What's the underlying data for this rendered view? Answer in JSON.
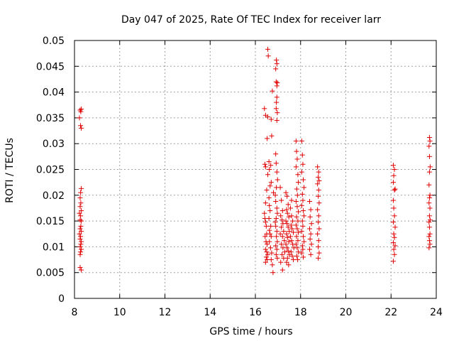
{
  "chart_data": {
    "type": "scatter",
    "title": "Day 047 of 2025, Rate Of TEC Index for receiver larr",
    "xlabel": "GPS time / hours",
    "ylabel": "ROTI / TECUs",
    "xlim": [
      8,
      24
    ],
    "ylim": [
      0,
      0.05
    ],
    "xticks": [
      "8",
      "10",
      "12",
      "14",
      "16",
      "18",
      "20",
      "22",
      "24"
    ],
    "yticks": [
      "0",
      "0.005",
      "0.01",
      "0.015",
      "0.02",
      "0.025",
      "0.03",
      "0.035",
      "0.04",
      "0.045",
      "0.05"
    ],
    "grid": true,
    "marker": "plus",
    "color": "#e00000",
    "series": [
      {
        "points": [
          [
            8.25,
            0.0365
          ],
          [
            8.28,
            0.0362
          ],
          [
            8.3,
            0.0367
          ],
          [
            8.22,
            0.035
          ],
          [
            8.27,
            0.0335
          ],
          [
            8.3,
            0.033
          ],
          [
            8.3,
            0.0213
          ],
          [
            8.27,
            0.0205
          ],
          [
            8.25,
            0.0195
          ],
          [
            8.28,
            0.0185
          ],
          [
            8.25,
            0.0178
          ],
          [
            8.3,
            0.017
          ],
          [
            8.22,
            0.0165
          ],
          [
            8.27,
            0.016
          ],
          [
            8.25,
            0.0152
          ],
          [
            8.3,
            0.015
          ],
          [
            8.28,
            0.014
          ],
          [
            8.25,
            0.0135
          ],
          [
            8.3,
            0.013
          ],
          [
            8.22,
            0.0125
          ],
          [
            8.27,
            0.012
          ],
          [
            8.25,
            0.0115
          ],
          [
            8.3,
            0.011
          ],
          [
            8.28,
            0.0105
          ],
          [
            8.25,
            0.01
          ],
          [
            8.3,
            0.0095
          ],
          [
            8.27,
            0.009
          ],
          [
            8.25,
            0.0085
          ],
          [
            8.25,
            0.006
          ],
          [
            8.3,
            0.0055
          ],
          [
            16.55,
            0.0483
          ],
          [
            16.57,
            0.047
          ],
          [
            16.93,
            0.0462
          ],
          [
            16.95,
            0.0455
          ],
          [
            16.9,
            0.0445
          ],
          [
            16.92,
            0.042
          ],
          [
            16.97,
            0.0418
          ],
          [
            16.95,
            0.0412
          ],
          [
            16.75,
            0.0402
          ],
          [
            16.95,
            0.039
          ],
          [
            16.93,
            0.038
          ],
          [
            16.4,
            0.0368
          ],
          [
            16.92,
            0.0368
          ],
          [
            16.97,
            0.036
          ],
          [
            16.45,
            0.0355
          ],
          [
            16.55,
            0.0352
          ],
          [
            16.95,
            0.0345
          ],
          [
            16.7,
            0.0347
          ],
          [
            16.72,
            0.0315
          ],
          [
            16.52,
            0.031
          ],
          [
            16.42,
            0.026
          ],
          [
            16.45,
            0.0255
          ],
          [
            16.55,
            0.024
          ],
          [
            16.6,
            0.0265
          ],
          [
            16.62,
            0.025
          ],
          [
            16.68,
            0.0258
          ],
          [
            16.7,
            0.0225
          ],
          [
            16.65,
            0.0218
          ],
          [
            16.5,
            0.021
          ],
          [
            16.45,
            0.0185
          ],
          [
            16.4,
            0.0165
          ],
          [
            16.42,
            0.0155
          ],
          [
            16.45,
            0.0148
          ],
          [
            16.48,
            0.014
          ],
          [
            16.5,
            0.0125
          ],
          [
            16.43,
            0.012
          ],
          [
            16.47,
            0.011
          ],
          [
            16.52,
            0.0105
          ],
          [
            16.45,
            0.0095
          ],
          [
            16.5,
            0.009
          ],
          [
            16.55,
            0.0085
          ],
          [
            16.48,
            0.008
          ],
          [
            16.52,
            0.0075
          ],
          [
            16.45,
            0.007
          ],
          [
            16.6,
            0.0195
          ],
          [
            16.62,
            0.018
          ],
          [
            16.65,
            0.017
          ],
          [
            16.6,
            0.0155
          ],
          [
            16.68,
            0.014
          ],
          [
            16.62,
            0.0132
          ],
          [
            16.65,
            0.0125
          ],
          [
            16.7,
            0.012
          ],
          [
            16.62,
            0.011
          ],
          [
            16.67,
            0.0098
          ],
          [
            16.72,
            0.0088
          ],
          [
            16.7,
            0.0075
          ],
          [
            16.75,
            0.0065
          ],
          [
            16.78,
            0.005
          ],
          [
            16.8,
            0.0205
          ],
          [
            16.9,
            0.028
          ],
          [
            16.92,
            0.0262
          ],
          [
            16.95,
            0.0245
          ],
          [
            16.98,
            0.023
          ],
          [
            16.93,
            0.0215
          ],
          [
            16.88,
            0.02
          ],
          [
            16.9,
            0.0188
          ],
          [
            16.95,
            0.0175
          ],
          [
            16.97,
            0.0165
          ],
          [
            16.92,
            0.0155
          ],
          [
            16.88,
            0.0148
          ],
          [
            16.9,
            0.014
          ],
          [
            16.95,
            0.013
          ],
          [
            16.93,
            0.012
          ],
          [
            16.97,
            0.011
          ],
          [
            16.9,
            0.0102
          ],
          [
            16.95,
            0.0095
          ],
          [
            16.92,
            0.0085
          ],
          [
            16.97,
            0.0078
          ],
          [
            17.1,
            0.0215
          ],
          [
            17.15,
            0.019
          ],
          [
            17.2,
            0.017
          ],
          [
            17.12,
            0.016
          ],
          [
            17.18,
            0.0152
          ],
          [
            17.22,
            0.0145
          ],
          [
            17.15,
            0.0138
          ],
          [
            17.25,
            0.013
          ],
          [
            17.1,
            0.0125
          ],
          [
            17.2,
            0.012
          ],
          [
            17.28,
            0.0112
          ],
          [
            17.15,
            0.0105
          ],
          [
            17.22,
            0.0098
          ],
          [
            17.3,
            0.009
          ],
          [
            17.18,
            0.0085
          ],
          [
            17.25,
            0.0078
          ],
          [
            17.12,
            0.007
          ],
          [
            17.2,
            0.0055
          ],
          [
            17.35,
            0.0205
          ],
          [
            17.4,
            0.0198
          ],
          [
            17.45,
            0.0182
          ],
          [
            17.38,
            0.0172
          ],
          [
            17.42,
            0.0165
          ],
          [
            17.48,
            0.0158
          ],
          [
            17.35,
            0.015
          ],
          [
            17.4,
            0.0145
          ],
          [
            17.45,
            0.0138
          ],
          [
            17.5,
            0.013
          ],
          [
            17.38,
            0.0125
          ],
          [
            17.42,
            0.0118
          ],
          [
            17.48,
            0.011
          ],
          [
            17.35,
            0.0105
          ],
          [
            17.4,
            0.0098
          ],
          [
            17.45,
            0.0092
          ],
          [
            17.5,
            0.0085
          ],
          [
            17.42,
            0.0078
          ],
          [
            17.38,
            0.007
          ],
          [
            17.47,
            0.0065
          ],
          [
            17.55,
            0.0175
          ],
          [
            17.6,
            0.016
          ],
          [
            17.65,
            0.015
          ],
          [
            17.58,
            0.0142
          ],
          [
            17.62,
            0.0135
          ],
          [
            17.68,
            0.0128
          ],
          [
            17.55,
            0.012
          ],
          [
            17.6,
            0.0112
          ],
          [
            17.65,
            0.0105
          ],
          [
            17.7,
            0.0098
          ],
          [
            17.58,
            0.009
          ],
          [
            17.63,
            0.0082
          ],
          [
            17.68,
            0.0075
          ],
          [
            17.6,
            0.019
          ],
          [
            17.8,
            0.0305
          ],
          [
            17.82,
            0.0285
          ],
          [
            17.85,
            0.027
          ],
          [
            17.8,
            0.0255
          ],
          [
            17.88,
            0.024
          ],
          [
            17.9,
            0.0225
          ],
          [
            17.83,
            0.0212
          ],
          [
            17.86,
            0.02
          ],
          [
            17.8,
            0.0188
          ],
          [
            17.85,
            0.0178
          ],
          [
            17.9,
            0.0168
          ],
          [
            17.82,
            0.0158
          ],
          [
            17.88,
            0.015
          ],
          [
            17.8,
            0.0142
          ],
          [
            17.85,
            0.0135
          ],
          [
            17.9,
            0.0128
          ],
          [
            17.82,
            0.012
          ],
          [
            17.88,
            0.0112
          ],
          [
            17.8,
            0.0105
          ],
          [
            17.85,
            0.0098
          ],
          [
            17.9,
            0.009
          ],
          [
            17.83,
            0.0082
          ],
          [
            17.87,
            0.0075
          ],
          [
            18.05,
            0.0305
          ],
          [
            18.08,
            0.0278
          ],
          [
            18.1,
            0.026
          ],
          [
            18.05,
            0.0245
          ],
          [
            18.12,
            0.023
          ],
          [
            18.15,
            0.0215
          ],
          [
            18.08,
            0.0202
          ],
          [
            18.1,
            0.019
          ],
          [
            18.05,
            0.018
          ],
          [
            18.12,
            0.017
          ],
          [
            18.15,
            0.016
          ],
          [
            18.08,
            0.015
          ],
          [
            18.1,
            0.014
          ],
          [
            18.05,
            0.013
          ],
          [
            18.12,
            0.012
          ],
          [
            18.15,
            0.011
          ],
          [
            18.08,
            0.0102
          ],
          [
            18.1,
            0.0095
          ],
          [
            18.05,
            0.0088
          ],
          [
            18.12,
            0.008
          ],
          [
            18.4,
            0.0188
          ],
          [
            18.45,
            0.0172
          ],
          [
            18.42,
            0.0158
          ],
          [
            18.48,
            0.0145
          ],
          [
            18.4,
            0.0135
          ],
          [
            18.45,
            0.0125
          ],
          [
            18.42,
            0.0115
          ],
          [
            18.48,
            0.0105
          ],
          [
            18.4,
            0.0095
          ],
          [
            18.45,
            0.0085
          ],
          [
            18.75,
            0.0255
          ],
          [
            18.8,
            0.0245
          ],
          [
            18.78,
            0.0235
          ],
          [
            18.82,
            0.0228
          ],
          [
            18.75,
            0.0222
          ],
          [
            18.8,
            0.021
          ],
          [
            18.78,
            0.0198
          ],
          [
            18.82,
            0.0185
          ],
          [
            18.75,
            0.0172
          ],
          [
            18.8,
            0.016
          ],
          [
            18.78,
            0.0148
          ],
          [
            18.82,
            0.0135
          ],
          [
            18.75,
            0.0125
          ],
          [
            18.8,
            0.0112
          ],
          [
            18.78,
            0.01
          ],
          [
            18.82,
            0.0088
          ],
          [
            18.78,
            0.0078
          ],
          [
            22.1,
            0.0258
          ],
          [
            22.15,
            0.025
          ],
          [
            22.12,
            0.0238
          ],
          [
            22.1,
            0.0225
          ],
          [
            22.18,
            0.0212
          ],
          [
            22.15,
            0.021
          ],
          [
            22.1,
            0.019
          ],
          [
            22.12,
            0.0175
          ],
          [
            22.15,
            0.016
          ],
          [
            22.1,
            0.0148
          ],
          [
            22.18,
            0.0138
          ],
          [
            22.12,
            0.0125
          ],
          [
            22.15,
            0.0118
          ],
          [
            22.1,
            0.0108
          ],
          [
            22.18,
            0.0102
          ],
          [
            22.12,
            0.0095
          ],
          [
            22.15,
            0.0085
          ],
          [
            22.1,
            0.0072
          ],
          [
            23.7,
            0.0312
          ],
          [
            23.72,
            0.0305
          ],
          [
            23.68,
            0.0295
          ],
          [
            23.7,
            0.0275
          ],
          [
            23.73,
            0.0255
          ],
          [
            23.7,
            0.0245
          ],
          [
            23.68,
            0.022
          ],
          [
            23.72,
            0.02
          ],
          [
            23.7,
            0.0195
          ],
          [
            23.68,
            0.0185
          ],
          [
            23.72,
            0.0175
          ],
          [
            23.7,
            0.016
          ],
          [
            23.73,
            0.0152
          ],
          [
            23.68,
            0.0148
          ],
          [
            23.7,
            0.0138
          ],
          [
            23.72,
            0.0125
          ],
          [
            23.68,
            0.012
          ],
          [
            23.7,
            0.0112
          ],
          [
            23.72,
            0.0105
          ],
          [
            23.68,
            0.0098
          ]
        ]
      }
    ]
  }
}
